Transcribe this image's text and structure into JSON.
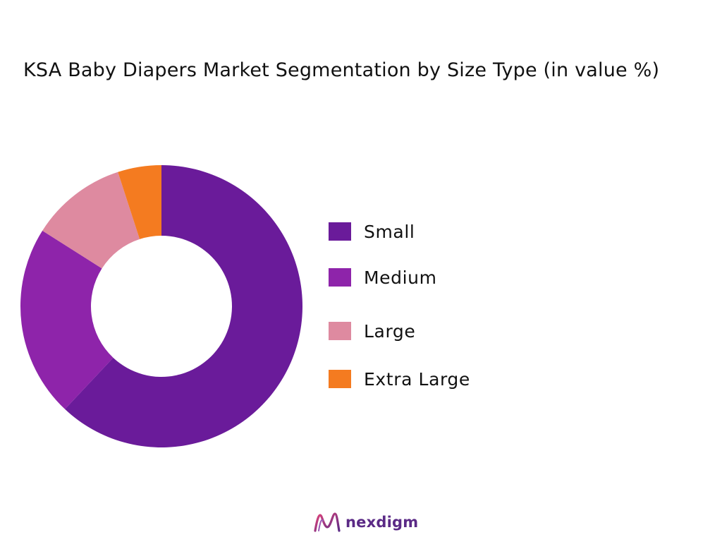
{
  "chart_data": {
    "type": "pie",
    "donut": true,
    "title": "KSA Baby Diapers Market Segmentation by Size Type  (in value %)",
    "categories": [
      "Small",
      "Medium",
      "Large",
      "Extra Large"
    ],
    "values": [
      62,
      22,
      11,
      5
    ],
    "colors": [
      "#6a1b9a",
      "#8e24aa",
      "#de8aa0",
      "#f47b20"
    ],
    "legend_position": "right"
  },
  "brand": {
    "name": "nexdigm",
    "logo_icon": "nexdigm-logo-icon",
    "color": "#5b2a86"
  }
}
